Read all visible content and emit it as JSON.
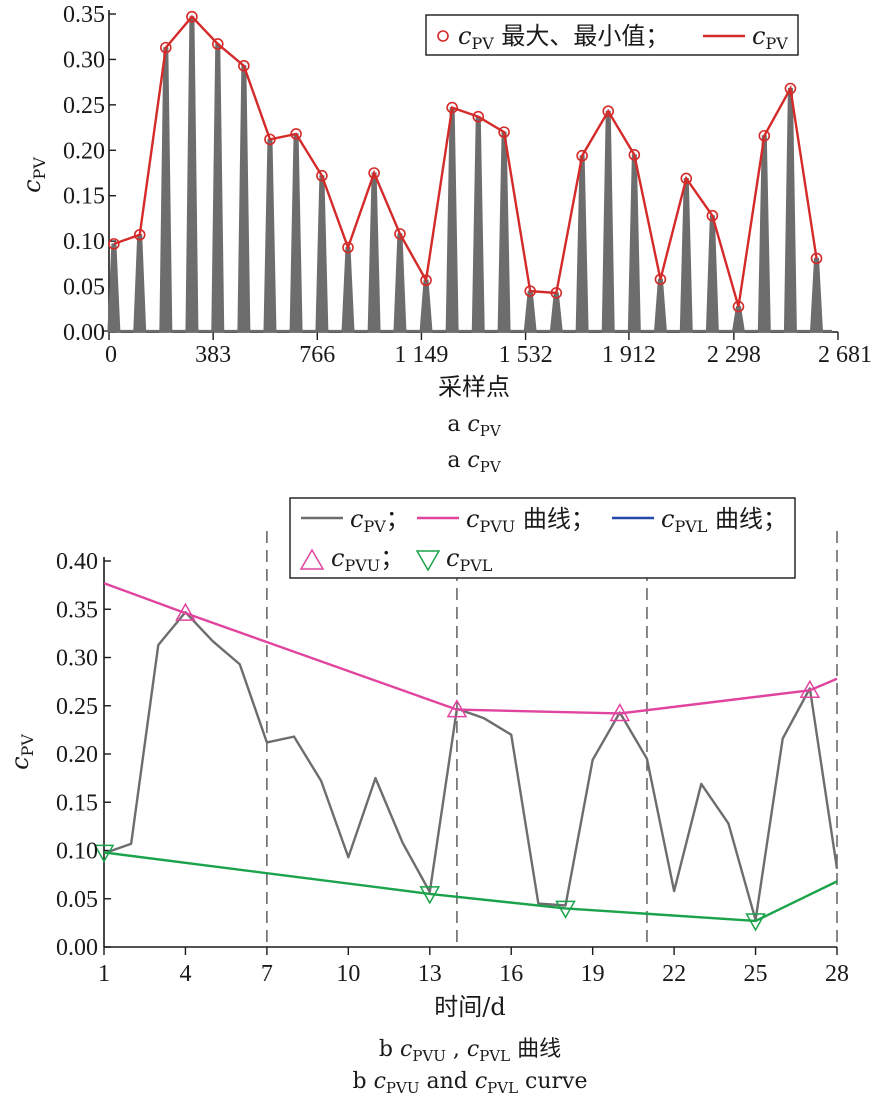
{
  "chart_data": [
    {
      "type": "line",
      "panel": "a",
      "xlabel": "采样点",
      "ylabel": {
        "main": "c",
        "sub": "PV"
      },
      "x_ticks": [
        0,
        383,
        766,
        1149,
        1532,
        1912,
        2298,
        2681
      ],
      "x_tick_labels": [
        "0",
        "383",
        "766",
        "1 149",
        "1 532",
        "1 912",
        "2 298",
        "2 681"
      ],
      "xlim": [
        0,
        2681
      ],
      "ylim": [
        0,
        0.35
      ],
      "y_ticks": [
        0.0,
        0.05,
        0.1,
        0.15,
        0.2,
        0.25,
        0.3,
        0.35
      ],
      "y_tick_labels": [
        "0.00",
        "0.05",
        "0.10",
        "0.15",
        "0.20",
        "0.25",
        "0.30",
        "0.35"
      ],
      "legend": {
        "placement": "top-right",
        "entries": [
          {
            "symbol": "c",
            "sub": "PV",
            "text": " 最大、最小值；"
          },
          {
            "symbol": "c",
            "sub": "PV",
            "text": ""
          }
        ]
      },
      "series": [
        {
          "style": "gray-pulses",
          "peaks_x": [
            18,
            113,
            209,
            305,
            400,
            496,
            592,
            688,
            783,
            879,
            975,
            1070,
            1166,
            1262,
            1358,
            1453,
            1549,
            1645,
            1740,
            1836,
            1932,
            2028,
            2123,
            2219,
            2315,
            2410,
            2506,
            2602
          ],
          "peaks_y": [
            0.097,
            0.107,
            0.313,
            0.347,
            0.317,
            0.293,
            0.212,
            0.218,
            0.172,
            0.093,
            0.175,
            0.108,
            0.057,
            0.247,
            0.237,
            0.22,
            0.045,
            0.043,
            0.194,
            0.243,
            0.195,
            0.058,
            0.169,
            0.128,
            0.028,
            0.216,
            0.268,
            0.081
          ]
        },
        {
          "style": "red-envelope",
          "x": [
            18,
            113,
            209,
            305,
            400,
            496,
            592,
            688,
            783,
            879,
            975,
            1070,
            1166,
            1262,
            1358,
            1453,
            1549,
            1645,
            1740,
            1836,
            1932,
            2028,
            2123,
            2219,
            2315,
            2410,
            2506,
            2602
          ],
          "y": [
            0.097,
            0.107,
            0.313,
            0.347,
            0.317,
            0.293,
            0.212,
            0.218,
            0.172,
            0.093,
            0.175,
            0.108,
            0.057,
            0.247,
            0.237,
            0.22,
            0.045,
            0.043,
            0.194,
            0.243,
            0.195,
            0.058,
            0.169,
            0.128,
            0.028,
            0.216,
            0.268,
            0.081
          ]
        }
      ],
      "caption_cn": {
        "prefix": "a  ",
        "symbol": "c",
        "sub": "PV"
      },
      "caption_en": {
        "prefix": "a  ",
        "symbol": "c",
        "sub": "PV"
      }
    },
    {
      "type": "line",
      "panel": "b",
      "xlabel": "时间/d",
      "ylabel": {
        "main": "c",
        "sub": "PV"
      },
      "xlim": [
        1,
        28
      ],
      "x_ticks": [
        1,
        4,
        7,
        10,
        13,
        16,
        19,
        22,
        25,
        28
      ],
      "ylim": [
        0,
        0.4
      ],
      "y_ticks": [
        0.0,
        0.05,
        0.1,
        0.15,
        0.2,
        0.25,
        0.3,
        0.35,
        0.4
      ],
      "y_tick_labels": [
        "0.00",
        "0.05",
        "0.10",
        "0.15",
        "0.20",
        "0.25",
        "0.30",
        "0.35",
        "0.40"
      ],
      "vlines": [
        7,
        14,
        21,
        28
      ],
      "legend": {
        "placement": "top-right",
        "entries": [
          {
            "symbol": "c",
            "sub": "PV",
            "text": "；"
          },
          {
            "symbol": "c",
            "sub": "PVU",
            "text": " 曲线；"
          },
          {
            "symbol": "c",
            "sub": "PVL",
            "text": " 曲线；"
          },
          {
            "symbol": "c",
            "sub": "PVU",
            "text": "；"
          },
          {
            "symbol": "c",
            "sub": "PVL",
            "text": ""
          }
        ]
      },
      "series": [
        {
          "style": "gray",
          "x": [
            1,
            2,
            3,
            4,
            5,
            6,
            7,
            8,
            9,
            10,
            11,
            12,
            13,
            14,
            15,
            16,
            17,
            18,
            19,
            20,
            21,
            22,
            23,
            24,
            25,
            26,
            27,
            28
          ],
          "y": [
            0.097,
            0.107,
            0.313,
            0.347,
            0.317,
            0.293,
            0.212,
            0.218,
            0.172,
            0.093,
            0.175,
            0.108,
            0.057,
            0.247,
            0.237,
            0.22,
            0.045,
            0.043,
            0.194,
            0.243,
            0.195,
            0.058,
            0.169,
            0.128,
            0.028,
            0.216,
            0.268,
            0.081
          ]
        },
        {
          "style": "magenta",
          "x": [
            1,
            4,
            14,
            20,
            27,
            28
          ],
          "y": [
            0.377,
            0.346,
            0.246,
            0.242,
            0.266,
            0.278
          ]
        },
        {
          "style": "green",
          "x": [
            1,
            13,
            18,
            25,
            28
          ],
          "y": [
            0.098,
            0.055,
            0.04,
            0.027,
            0.068
          ]
        },
        {
          "style": "up-triangles",
          "x": [
            4,
            14,
            20,
            27
          ],
          "y": [
            0.346,
            0.246,
            0.242,
            0.266
          ]
        },
        {
          "style": "down-triangles",
          "x": [
            1,
            13,
            18,
            25
          ],
          "y": [
            0.098,
            0.055,
            0.04,
            0.027
          ]
        }
      ],
      "caption_cn": {
        "prefix": "b   ",
        "s1": "c",
        "sub1": "PVU",
        "mid": " , ",
        "s2": "c",
        "sub2": "PVL",
        "text": " 曲线"
      },
      "caption_en": {
        "prefix": "b  ",
        "s1": "c",
        "sub1": "PVU",
        "mid": " and ",
        "s2": "c",
        "sub2": "PVL",
        "text": " curve"
      }
    }
  ],
  "colors": {
    "gray": "#6d6d6d",
    "red": "#d42a2a",
    "magenta": "#e0449e",
    "green": "#1aa34a",
    "blue": "#2448a8",
    "axis": "#1a1a1a",
    "dash": "#555555"
  }
}
